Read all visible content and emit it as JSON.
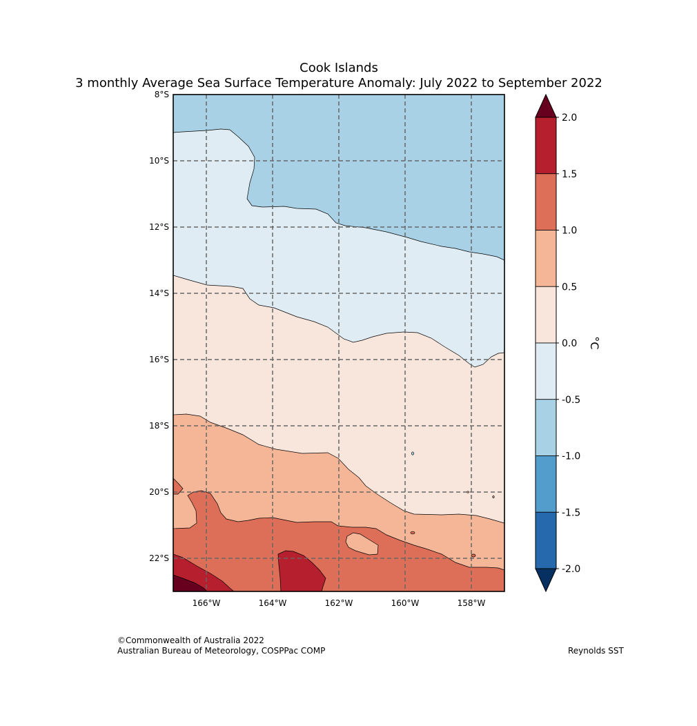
{
  "title": "Cook Islands",
  "subtitle": "3 monthly Average Sea Surface Temperature Anomaly: July 2022 to September 2022",
  "map": {
    "lat_labels": [
      "8°S",
      "10°S",
      "12°S",
      "14°S",
      "16°S",
      "18°S",
      "20°S",
      "22°S"
    ],
    "lon_labels": [
      "166°W",
      "164°W",
      "162°W",
      "160°W",
      "158°W"
    ],
    "lat_range": [
      "8°S",
      "23°S"
    ],
    "lon_range": [
      "167°W",
      "157°W"
    ]
  },
  "colorbar": {
    "unit": "°C",
    "ticks": [
      "2.0",
      "1.5",
      "1.0",
      "0.5",
      "0.0",
      "-0.5",
      "-1.0",
      "-1.5",
      "-2.0"
    ],
    "bins": [
      {
        "range": "> 2.0",
        "color": "#67001f"
      },
      {
        "range": "1.5 to 2.0",
        "color": "#b61f2e"
      },
      {
        "range": "1.0 to 1.5",
        "color": "#dd6e58"
      },
      {
        "range": "0.5 to 1.0",
        "color": "#f5b698"
      },
      {
        "range": "0.0 to 0.5",
        "color": "#f8e6dc"
      },
      {
        "range": "-0.5 to 0.0",
        "color": "#e0ecf3"
      },
      {
        "range": "-1.0 to -0.5",
        "color": "#a9d1e5"
      },
      {
        "range": "-1.5 to -1.0",
        "color": "#529dcc"
      },
      {
        "range": "-2.0 to -1.5",
        "color": "#2669ad"
      },
      {
        "range": "< -2.0",
        "color": "#053061"
      }
    ]
  },
  "footer": {
    "copyright": "©Commonwealth of Australia 2022",
    "source": "Australian Bureau of Meteorology, COSPPac COMP",
    "dataset": "Reynolds SST"
  }
}
